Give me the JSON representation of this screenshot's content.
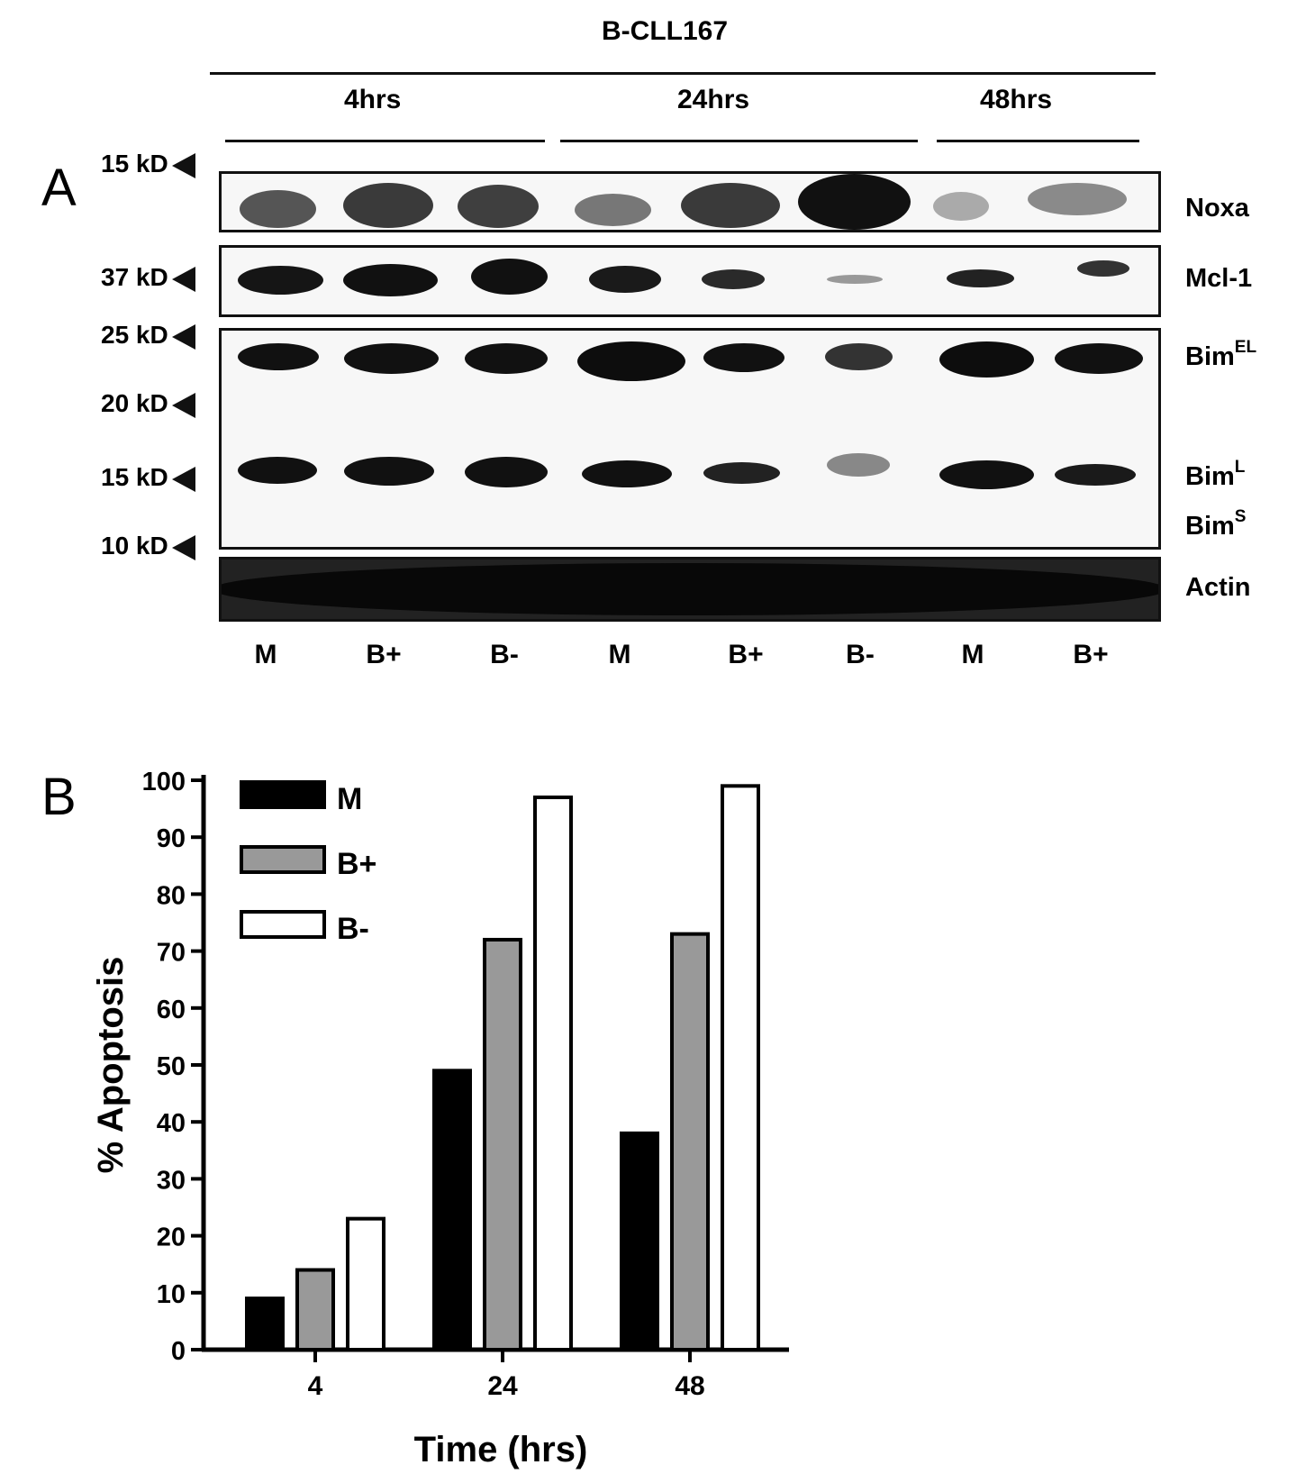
{
  "panel_a": {
    "letter": "A",
    "title": "B-CLL167",
    "timepoints": [
      "4hrs",
      "24hrs",
      "48hrs"
    ],
    "markers": [
      "15 kD",
      "37 kD",
      "25 kD",
      "20 kD",
      "15 kD",
      "10 kD"
    ],
    "blots": {
      "noxa": "Noxa",
      "mcl1": "Mcl-1",
      "bim": "Bim",
      "bim_el_sup": "EL",
      "bim_l_sup": "L",
      "bim_s_sup": "S",
      "actin": "Actin"
    },
    "lanes": [
      "M",
      "B+",
      "B-",
      "M",
      "B+",
      "B-",
      "M",
      "B+"
    ]
  },
  "panel_b": {
    "letter": "B"
  },
  "chart_data": {
    "type": "bar",
    "categories": [
      "4",
      "24",
      "48"
    ],
    "series": [
      {
        "name": "M",
        "values": [
          9,
          49,
          38
        ],
        "color": "#000000"
      },
      {
        "name": "B+",
        "values": [
          14,
          72,
          73
        ],
        "color": "#999999"
      },
      {
        "name": "B-",
        "values": [
          23,
          97,
          99
        ],
        "color": "#ffffff"
      }
    ],
    "y_ticks": [
      "0",
      "10",
      "20",
      "30",
      "40",
      "50",
      "60",
      "70",
      "80",
      "90",
      "100"
    ],
    "ylabel": "% Apoptosis",
    "xlabel": "Time (hrs)",
    "ylim": [
      0,
      100
    ],
    "legend": "top-left",
    "grid": false
  }
}
